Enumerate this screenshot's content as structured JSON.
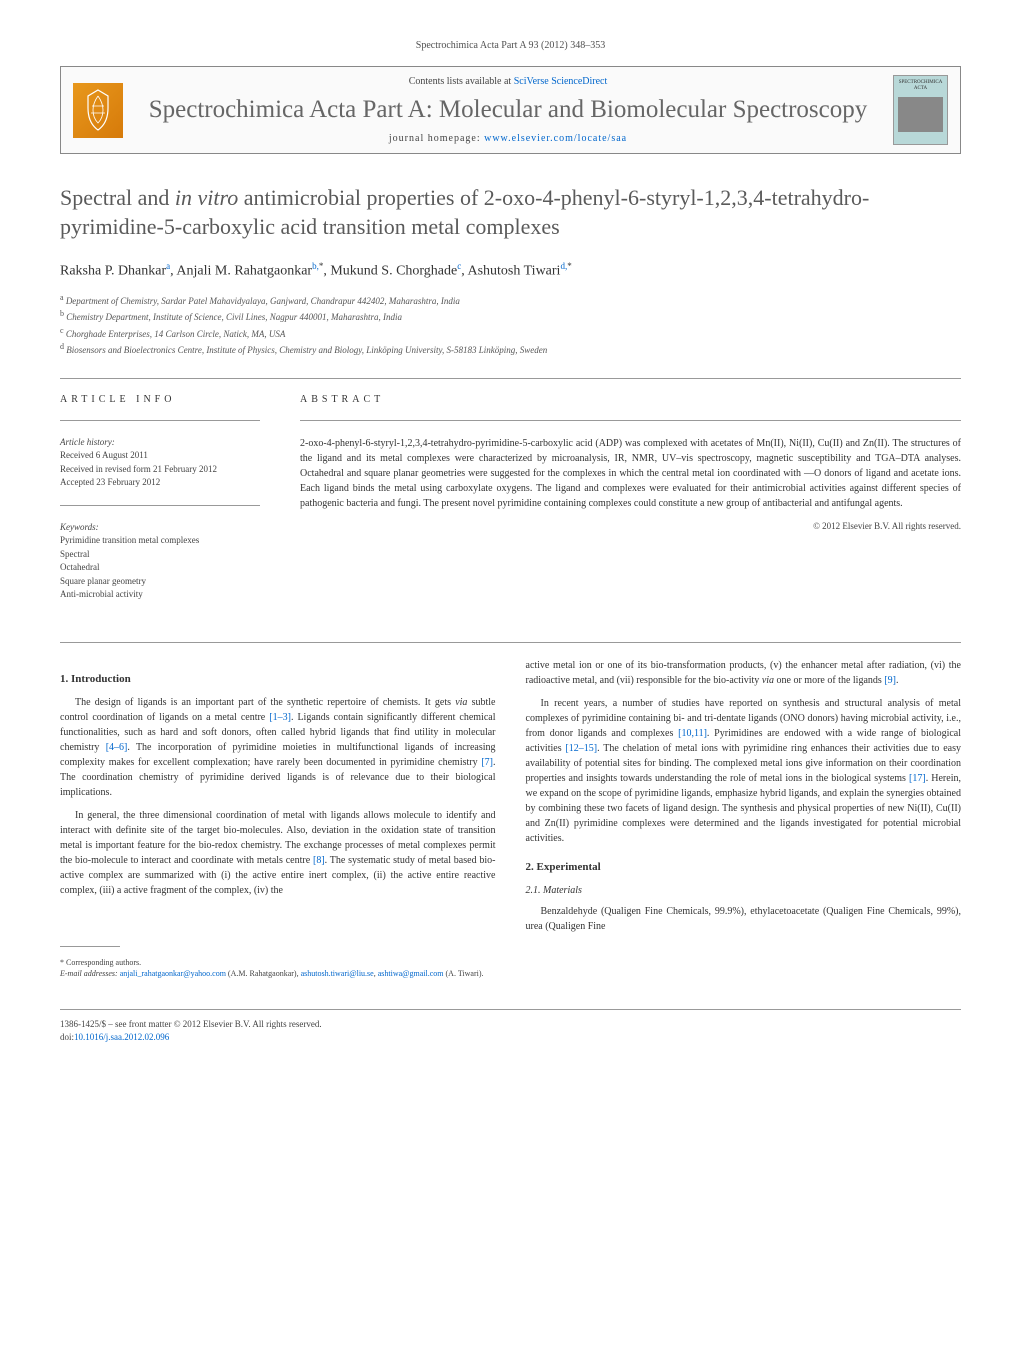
{
  "header": {
    "citation": "Spectrochimica Acta Part A 93 (2012) 348–353"
  },
  "banner": {
    "contents_prefix": "Contents lists available at ",
    "contents_link": "SciVerse ScienceDirect",
    "journal_title": "Spectrochimica Acta Part A: Molecular and Biomolecular Spectroscopy",
    "homepage_prefix": "journal homepage: ",
    "homepage_url": "www.elsevier.com/locate/saa",
    "cover_label": "SPECTROCHIMICA ACTA"
  },
  "article": {
    "title_html": "Spectral and <i>in vitro</i> antimicrobial properties of 2-oxo-4-phenyl-6-styryl-1,2,3,4-tetrahydro-pyrimidine-5-carboxylic acid transition metal complexes",
    "authors_html": "Raksha P. Dhankar<sup>a</sup>, Anjali M. Rahatgaonkar<sup>b,</sup><sup class='star'>*</sup>, Mukund S. Chorghade<sup>c</sup>, Ashutosh Tiwari<sup>d,</sup><sup class='star'>*</sup>",
    "affiliations": [
      {
        "sup": "a",
        "text": "Department of Chemistry, Sardar Patel Mahavidyalaya, Ganjward, Chandrapur 442402, Maharashtra, India"
      },
      {
        "sup": "b",
        "text": "Chemistry Department, Institute of Science, Civil Lines, Nagpur 440001, Maharashtra, India"
      },
      {
        "sup": "c",
        "text": "Chorghade Enterprises, 14 Carlson Circle, Natick, MA, USA"
      },
      {
        "sup": "d",
        "text": "Biosensors and Bioelectronics Centre, Institute of Physics, Chemistry and Biology, Linköping University, S-58183 Linköping, Sweden"
      }
    ]
  },
  "article_info": {
    "heading": "ARTICLE INFO",
    "history_label": "Article history:",
    "history": [
      "Received 6 August 2011",
      "Received in revised form 21 February 2012",
      "Accepted 23 February 2012"
    ],
    "keywords_label": "Keywords:",
    "keywords": [
      "Pyrimidine transition metal complexes",
      "Spectral",
      "Octahedral",
      "Square planar geometry",
      "Anti-microbial activity"
    ]
  },
  "abstract": {
    "heading": "ABSTRACT",
    "text": "2-oxo-4-phenyl-6-styryl-1,2,3,4-tetrahydro-pyrimidine-5-carboxylic acid (ADP) was complexed with acetates of Mn(II), Ni(II), Cu(II) and Zn(II). The structures of the ligand and its metal complexes were characterized by microanalysis, IR, NMR, UV–vis spectroscopy, magnetic susceptibility and TGA–DTA analyses. Octahedral and square planar geometries were suggested for the complexes in which the central metal ion coordinated with —O donors of ligand and acetate ions. Each ligand binds the metal using carboxylate oxygens. The ligand and complexes were evaluated for their antimicrobial activities against different species of pathogenic bacteria and fungi. The present novel pyrimidine containing complexes could constitute a new group of antibacterial and antifungal agents.",
    "copyright": "© 2012 Elsevier B.V. All rights reserved."
  },
  "sections": {
    "intro_heading": "1. Introduction",
    "intro_p1_html": "The design of ligands is an important part of the synthetic repertoire of chemists. It gets <i>via</i> subtle control coordination of ligands on a metal centre <a href='#'>[1–3]</a>. Ligands contain significantly different chemical functionalities, such as hard and soft donors, often called hybrid ligands that find utility in molecular chemistry <a href='#'>[4–6]</a>. The incorporation of pyrimidine moieties in multifunctional ligands of increasing complexity makes for excellent complexation; have rarely been documented in pyrimidine chemistry <a href='#'>[7]</a>. The coordination chemistry of pyrimidine derived ligands is of relevance due to their biological implications.",
    "intro_p2_html": "In general, the three dimensional coordination of metal with ligands allows molecule to identify and interact with definite site of the target bio-molecules. Also, deviation in the oxidation state of transition metal is important feature for the bio-redox chemistry. The exchange processes of metal complexes permit the bio-molecule to interact and coordinate with metals centre <a href='#'>[8]</a>. The systematic study of metal based bio-active complex are summarized with (i) the active entire inert complex, (ii) the active entire reactive complex, (iii) a active fragment of the complex, (iv) the",
    "intro_p3_html": "active metal ion or one of its bio-transformation products, (v) the enhancer metal after radiation, (vi) the radioactive metal, and (vii) responsible for the bio-activity <i>via</i> one or more of the ligands <a href='#'>[9]</a>.",
    "intro_p4_html": "In recent years, a number of studies have reported on synthesis and structural analysis of metal complexes of pyrimidine containing bi- and tri-dentate ligands (ONO donors) having microbial activity, i.e., from donor ligands and complexes <a href='#'>[10,11]</a>. Pyrimidines are endowed with a wide range of biological activities <a href='#'>[12–15]</a>. The chelation of metal ions with pyrimidine ring enhances their activities due to easy availability of potential sites for binding. The complexed metal ions give information on their coordination properties and insights towards understanding the role of metal ions in the biological systems <a href='#'>[17]</a>. Herein, we expand on the scope of pyrimidine ligands, emphasize hybrid ligands, and explain the synergies obtained by combining these two facets of ligand design. The synthesis and physical properties of new Ni(II), Cu(II) and Zn(II) pyrimidine complexes were determined and the ligands investigated for potential microbial activities.",
    "exp_heading": "2. Experimental",
    "materials_heading": "2.1. Materials",
    "materials_p1": "Benzaldehyde (Qualigen Fine Chemicals, 99.9%), ethylacetoacetate (Qualigen Fine Chemicals, 99%), urea (Qualigen Fine"
  },
  "corresponding": {
    "label": "* Corresponding authors.",
    "email_label": "E-mail addresses:",
    "email1": "anjali_rahatgaonkar@yahoo.com",
    "name1": "(A.M. Rahatgaonkar),",
    "email2": "ashutosh.tiwari@liu.se",
    "email3": "ashtiwa@gmail.com",
    "name2": "(A. Tiwari)."
  },
  "footer": {
    "issn_line": "1386-1425/$ – see front matter © 2012 Elsevier B.V. All rights reserved.",
    "doi_prefix": "doi:",
    "doi": "10.1016/j.saa.2012.02.096"
  },
  "colors": {
    "link": "#0066cc",
    "text": "#333333",
    "muted": "#505050",
    "elsevier_bg": "#e8981c",
    "cover_bg": "#b8d8d8"
  },
  "typography": {
    "body_fontsize": 10,
    "title_fontsize": 22,
    "journal_title_fontsize": 25,
    "heading_fontsize": 11,
    "affil_fontsize": 9
  }
}
